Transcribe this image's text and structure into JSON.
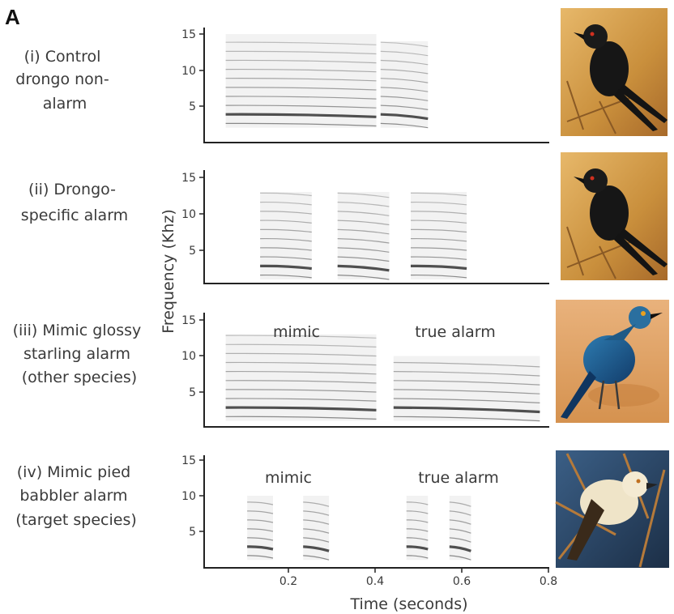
{
  "figure": {
    "panel_letter": "A",
    "ylabel": "Frequency (Khz)",
    "xlabel": "Time (seconds)",
    "y_ticks": [
      "15",
      "10",
      "5"
    ],
    "x_ticks": [
      "0.2",
      "0.4",
      "0.6",
      "0.8"
    ],
    "palette": {
      "ink": "#222222",
      "text": "#3a3a3a",
      "drongo_bg": "#d9a04a",
      "starling_bg": "#e0a46a",
      "babbler_bg": "#2b4a6e"
    }
  },
  "rows": [
    {
      "label_lines": [
        "(i) Control",
        "drongo non-",
        "alarm"
      ],
      "annotations": [],
      "image": {
        "subject": "fork-tailed drongo",
        "icon": "drongo-photo"
      }
    },
    {
      "label_lines": [
        "(ii) Drongo-",
        "specific alarm"
      ],
      "annotations": [],
      "image": {
        "subject": "fork-tailed drongo",
        "icon": "drongo-photo"
      }
    },
    {
      "label_lines": [
        "(iii) Mimic glossy",
        "starling alarm",
        "(other species)"
      ],
      "annotations": [
        "mimic",
        "true alarm"
      ],
      "image": {
        "subject": "glossy starling",
        "icon": "starling-photo"
      }
    },
    {
      "label_lines": [
        "(iv) Mimic pied",
        "babbler alarm",
        "(target species)"
      ],
      "annotations": [
        "mimic",
        "true alarm"
      ],
      "image": {
        "subject": "pied babbler",
        "icon": "babbler-photo"
      }
    }
  ],
  "chart_data": {
    "type": "spectrogram",
    "x_range": [
      0,
      0.8
    ],
    "y_range": [
      0,
      16
    ],
    "x_unit": "seconds",
    "y_unit": "Khz",
    "panels": [
      {
        "segments": [
          {
            "t_start": 0.05,
            "t_end": 0.4,
            "f_min": 2,
            "f_max": 15
          },
          {
            "t_start": 0.41,
            "t_end": 0.52,
            "f_min": 2,
            "f_max": 14
          }
        ]
      },
      {
        "segments": [
          {
            "t_start": 0.13,
            "t_end": 0.25,
            "f_min": 1,
            "f_max": 13
          },
          {
            "t_start": 0.31,
            "t_end": 0.43,
            "f_min": 1,
            "f_max": 13
          },
          {
            "t_start": 0.48,
            "t_end": 0.61,
            "f_min": 1,
            "f_max": 13
          }
        ]
      },
      {
        "segments": [
          {
            "t_start": 0.05,
            "t_end": 0.4,
            "f_min": 1,
            "f_max": 13
          },
          {
            "t_start": 0.44,
            "t_end": 0.78,
            "f_min": 1,
            "f_max": 10
          }
        ]
      },
      {
        "segments": [
          {
            "t_start": 0.1,
            "t_end": 0.16,
            "f_min": 1,
            "f_max": 10
          },
          {
            "t_start": 0.23,
            "t_end": 0.29,
            "f_min": 1,
            "f_max": 10
          },
          {
            "t_start": 0.47,
            "t_end": 0.52,
            "f_min": 1,
            "f_max": 10
          },
          {
            "t_start": 0.57,
            "t_end": 0.62,
            "f_min": 1,
            "f_max": 10
          }
        ]
      }
    ]
  }
}
